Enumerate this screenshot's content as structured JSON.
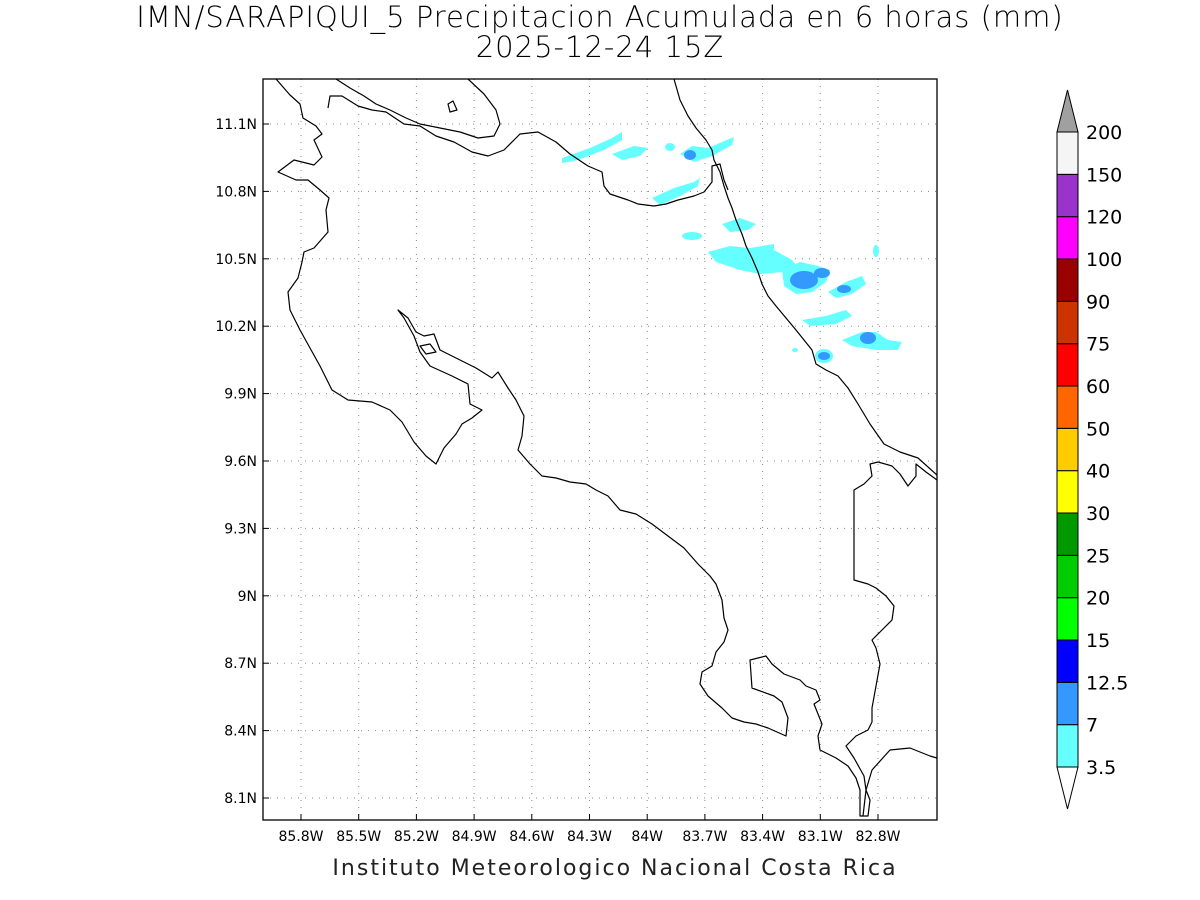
{
  "title": {
    "line1": "IMN/SARAPIQUI_5 Precipitacion Acumulada en 6 horas (mm)",
    "line2": "2025-12-24 15Z"
  },
  "footer": "Instituto Meteorologico Nacional Costa Rica",
  "map": {
    "lon_range": [
      -86.0,
      -82.5
    ],
    "lat_range": [
      8.0,
      11.3
    ],
    "lon_ticks": [
      {
        "value": -85.8,
        "label": "85.8W"
      },
      {
        "value": -85.5,
        "label": "85.5W"
      },
      {
        "value": -85.2,
        "label": "85.2W"
      },
      {
        "value": -84.9,
        "label": "84.9W"
      },
      {
        "value": -84.6,
        "label": "84.6W"
      },
      {
        "value": -84.3,
        "label": "84.3W"
      },
      {
        "value": -84.0,
        "label": "84W"
      },
      {
        "value": -83.7,
        "label": "83.7W"
      },
      {
        "value": -83.4,
        "label": "83.4W"
      },
      {
        "value": -83.1,
        "label": "83.1W"
      },
      {
        "value": -82.8,
        "label": "82.8W"
      }
    ],
    "lat_ticks": [
      {
        "value": 11.1,
        "label": "11.1N"
      },
      {
        "value": 10.8,
        "label": "10.8N"
      },
      {
        "value": 10.5,
        "label": "10.5N"
      },
      {
        "value": 10.2,
        "label": "10.2N"
      },
      {
        "value": 9.9,
        "label": "9.9N"
      },
      {
        "value": 9.6,
        "label": "9.6N"
      },
      {
        "value": 9.3,
        "label": "9.3N"
      },
      {
        "value": 9.0,
        "label": "9N"
      },
      {
        "value": 8.7,
        "label": "8.7N"
      },
      {
        "value": 8.4,
        "label": "8.4N"
      },
      {
        "value": 8.1,
        "label": "8.1N"
      }
    ]
  },
  "colorbar": {
    "levels": [
      "3.5",
      "7",
      "12.5",
      "15",
      "20",
      "25",
      "30",
      "40",
      "50",
      "60",
      "75",
      "90",
      "100",
      "120",
      "150",
      "200"
    ],
    "colors": [
      "#66ffff",
      "#3399ff",
      "#0000ff",
      "#00ff00",
      "#00cc00",
      "#009900",
      "#ffff00",
      "#ffcc00",
      "#ff6600",
      "#ff0000",
      "#cc3300",
      "#990000",
      "#ff00ff",
      "#9933cc",
      "#f5f5f5"
    ],
    "under_color": "#ffffff",
    "over_color": "#a0a0a0"
  }
}
